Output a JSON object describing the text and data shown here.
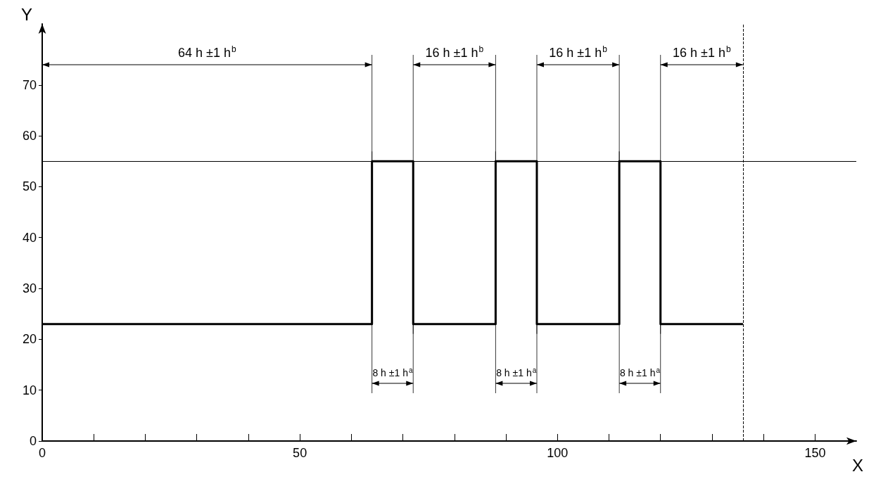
{
  "chart_data": {
    "type": "step",
    "xlabel": "X",
    "ylabel": "Y",
    "x": [
      0,
      64,
      72,
      88,
      96,
      112,
      120,
      136
    ],
    "values": [
      23,
      55,
      23,
      55,
      23,
      55,
      23,
      23
    ],
    "color": "#000000",
    "xlim": [
      0,
      158
    ],
    "xticks": [
      0,
      {
        "value": 10,
        "label": null
      },
      {
        "value": 20,
        "label": null
      },
      {
        "value": 30,
        "label": null
      },
      {
        "value": 40,
        "label": null
      },
      50,
      {
        "value": 60,
        "label": null
      },
      {
        "value": 70,
        "label": null
      },
      {
        "value": 80,
        "label": null
      },
      {
        "value": 90,
        "label": null
      },
      100,
      {
        "value": 110,
        "label": null
      },
      {
        "value": 120,
        "label": null
      },
      {
        "value": 130,
        "label": null
      },
      {
        "value": 140,
        "label": null
      },
      150
    ],
    "ylim": [
      0,
      82
    ],
    "yticks": [
      0,
      10,
      20,
      30,
      40,
      50,
      60,
      70
    ],
    "marker": "none",
    "line_style": "solid",
    "ref_lines": [
      {
        "axis": "y",
        "value": 55,
        "color": "#000000",
        "line_style": "solid"
      },
      {
        "axis": "x",
        "value": 136,
        "color": "#000000",
        "line_style": "dashed"
      }
    ],
    "annotations": [
      "64 h ±1 h$^{b}$",
      "16 h ±1 h$^{b}$",
      "16 h ±1 h$^{b}$",
      "16 h ±1 h$^{b}$",
      "8 h ±1 h$^{a}$",
      "8 h ±1 h$^{a}$",
      "8 h ±1 h$^{a}$"
    ]
  }
}
